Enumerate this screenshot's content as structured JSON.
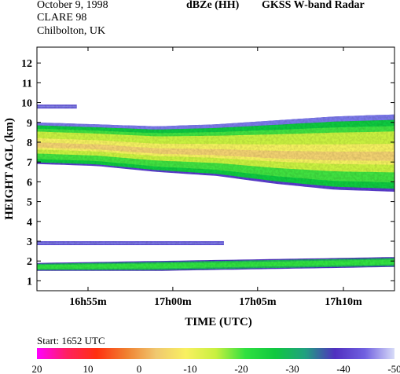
{
  "header": {
    "date": "October  9, 1998",
    "campaign": "CLARE 98",
    "location": "Chilbolton, UK",
    "product": "dBZe (HH)",
    "instrument": "GKSS  W-band Radar",
    "start": "Start: 1652 UTC"
  },
  "colorbar": {
    "ticks": [
      "20",
      "10",
      "0",
      "-10",
      "-20",
      "-30",
      "-40",
      "-50"
    ],
    "stops": [
      "#ff00ff",
      "#ff2060",
      "#ff3010",
      "#f08030",
      "#f0c870",
      "#f8f060",
      "#c8f040",
      "#30e040",
      "#10c840",
      "#20a080",
      "#5030c0",
      "#7060e0",
      "#d8dcf8"
    ]
  },
  "chart_data": {
    "type": "heatmap",
    "title": "dBZe (HH)   GKSS  W-band Radar",
    "xlabel": "TIME (UTC)",
    "ylabel": "HEIGHT AGL (km)",
    "x_ticks": [
      "16h55m",
      "17h00m",
      "17h05m",
      "17h10m"
    ],
    "x_tick_minutes": [
      16.917,
      17.0,
      17.083,
      17.167
    ],
    "xlim_hours": [
      16.867,
      17.217
    ],
    "y_ticks": [
      "1",
      "2",
      "3",
      "4",
      "5",
      "6",
      "7",
      "8",
      "9",
      "10",
      "11",
      "12"
    ],
    "ylim": [
      0.5,
      12.8
    ],
    "colorbar_label_range": [
      20,
      -50
    ],
    "layers": [
      {
        "name": "upper cloud",
        "start_hour": 16.867,
        "end_hour": 17.217,
        "top_km": [
          9.0,
          8.9,
          8.8,
          8.9,
          9.1,
          9.3,
          9.4
        ],
        "base_km": [
          6.9,
          6.8,
          6.5,
          6.3,
          5.9,
          5.6,
          5.5
        ],
        "peak_dbz": -10
      },
      {
        "name": "thin high layer",
        "start_hour": 16.867,
        "end_hour": 16.906,
        "top_km": [
          9.9
        ],
        "base_km": [
          9.7
        ],
        "peak_dbz": -40
      },
      {
        "name": "mid thin layer",
        "start_hour": 16.867,
        "end_hour": 17.05,
        "top_km": [
          3.0
        ],
        "base_km": [
          2.8
        ],
        "peak_dbz": -40
      },
      {
        "name": "low cloud",
        "start_hour": 16.867,
        "end_hour": 17.217,
        "top_km": [
          1.9,
          2.0,
          2.1,
          2.2
        ],
        "base_km": [
          1.5,
          1.5,
          1.6,
          1.7
        ],
        "peak_dbz": -30
      }
    ]
  }
}
